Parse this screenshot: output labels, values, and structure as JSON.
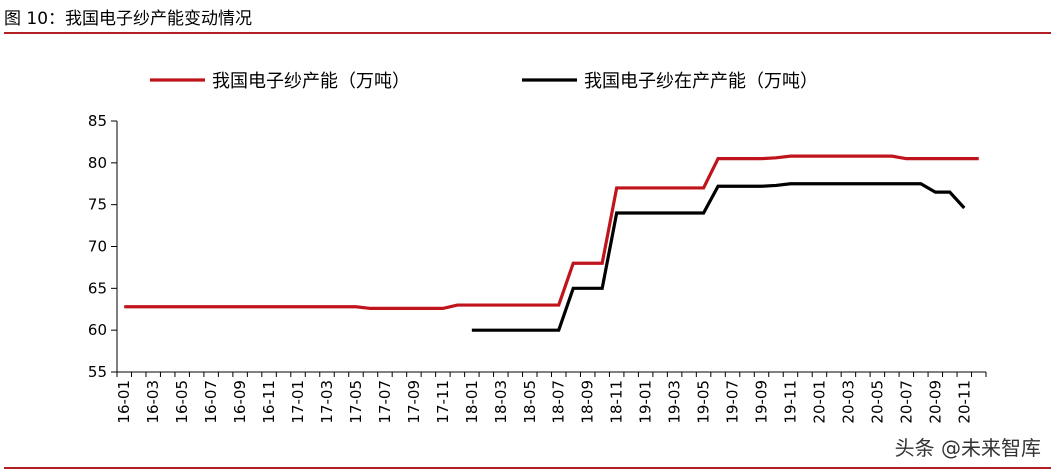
{
  "figure": {
    "title": "图 10：我国电子纱产能变动情况",
    "watermark": "头条 @未来智库"
  },
  "colors": {
    "capacity": "#c0141c",
    "in_production": "#000000",
    "axis": "#000000",
    "rule": "#b21f24"
  },
  "chart_data": {
    "type": "line",
    "title": "",
    "xlabel": "",
    "ylabel": "",
    "ylim": [
      55,
      85
    ],
    "yticks": [
      55,
      60,
      65,
      70,
      75,
      80,
      85
    ],
    "grid": false,
    "legend_position": "top",
    "x": [
      "16-01",
      "16-02",
      "16-03",
      "16-04",
      "16-05",
      "16-06",
      "16-07",
      "16-08",
      "16-09",
      "16-10",
      "16-11",
      "16-12",
      "17-01",
      "17-02",
      "17-03",
      "17-04",
      "17-05",
      "17-06",
      "17-07",
      "17-08",
      "17-09",
      "17-10",
      "17-11",
      "17-12",
      "18-01",
      "18-02",
      "18-03",
      "18-04",
      "18-05",
      "18-06",
      "18-07",
      "18-08",
      "18-09",
      "18-10",
      "18-11",
      "18-12",
      "19-01",
      "19-02",
      "19-03",
      "19-04",
      "19-05",
      "19-06",
      "19-07",
      "19-08",
      "19-09",
      "19-10",
      "19-11",
      "19-12",
      "20-01",
      "20-02",
      "20-03",
      "20-04",
      "20-05",
      "20-06",
      "20-07",
      "20-08",
      "20-09",
      "20-10",
      "20-11",
      "20-12"
    ],
    "xtick_labels": [
      "16-01",
      "16-03",
      "16-05",
      "16-07",
      "16-09",
      "16-11",
      "17-01",
      "17-03",
      "17-05",
      "17-07",
      "17-09",
      "17-11",
      "18-01",
      "18-03",
      "18-05",
      "18-07",
      "18-09",
      "18-11",
      "19-01",
      "19-03",
      "19-05",
      "19-07",
      "19-09",
      "19-11",
      "20-01",
      "20-03",
      "20-05",
      "20-07",
      "20-09",
      "20-11"
    ],
    "series": [
      {
        "name": "我国电子纱产能（万吨）",
        "color": "#c0141c",
        "values": [
          62.8,
          62.8,
          62.8,
          62.8,
          62.8,
          62.8,
          62.8,
          62.8,
          62.8,
          62.8,
          62.8,
          62.8,
          62.8,
          62.8,
          62.8,
          62.8,
          62.8,
          62.6,
          62.6,
          62.6,
          62.6,
          62.6,
          62.6,
          63.0,
          63.0,
          63.0,
          63.0,
          63.0,
          63.0,
          63.0,
          63.0,
          68.0,
          68.0,
          68.0,
          77.0,
          77.0,
          77.0,
          77.0,
          77.0,
          77.0,
          77.0,
          80.5,
          80.5,
          80.5,
          80.5,
          80.6,
          80.8,
          80.8,
          80.8,
          80.8,
          80.8,
          80.8,
          80.8,
          80.8,
          80.5,
          80.5,
          80.5,
          80.5,
          80.5,
          80.5
        ]
      },
      {
        "name": "我国电子纱在产产能（万吨）",
        "color": "#000000",
        "values": [
          null,
          null,
          null,
          null,
          null,
          null,
          null,
          null,
          null,
          null,
          null,
          null,
          null,
          null,
          null,
          null,
          null,
          null,
          null,
          null,
          null,
          null,
          null,
          null,
          60.0,
          60.0,
          60.0,
          60.0,
          60.0,
          60.0,
          60.0,
          65.0,
          65.0,
          65.0,
          74.0,
          74.0,
          74.0,
          74.0,
          74.0,
          74.0,
          74.0,
          77.2,
          77.2,
          77.2,
          77.2,
          77.3,
          77.5,
          77.5,
          77.5,
          77.5,
          77.5,
          77.5,
          77.5,
          77.5,
          77.5,
          77.5,
          76.5,
          76.5,
          74.6,
          null
        ]
      }
    ]
  }
}
